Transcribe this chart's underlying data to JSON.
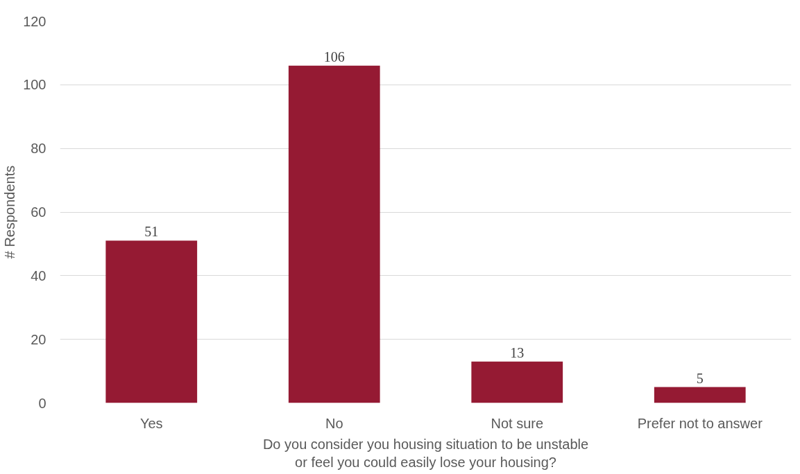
{
  "chart_data": {
    "type": "bar",
    "categories": [
      "Yes",
      "No",
      "Not sure",
      "Prefer not to answer"
    ],
    "values": [
      51,
      106,
      13,
      5
    ],
    "color": "#951a33",
    "ylabel": "# Respondents",
    "xlabel": "Do you consider you housing situation to be unstable\nor feel you could easily lose your housing?",
    "ylim": [
      0,
      120
    ],
    "yticks": [
      0,
      20,
      40,
      60,
      80,
      100,
      120
    ],
    "grid": "y",
    "data_labels": true
  }
}
